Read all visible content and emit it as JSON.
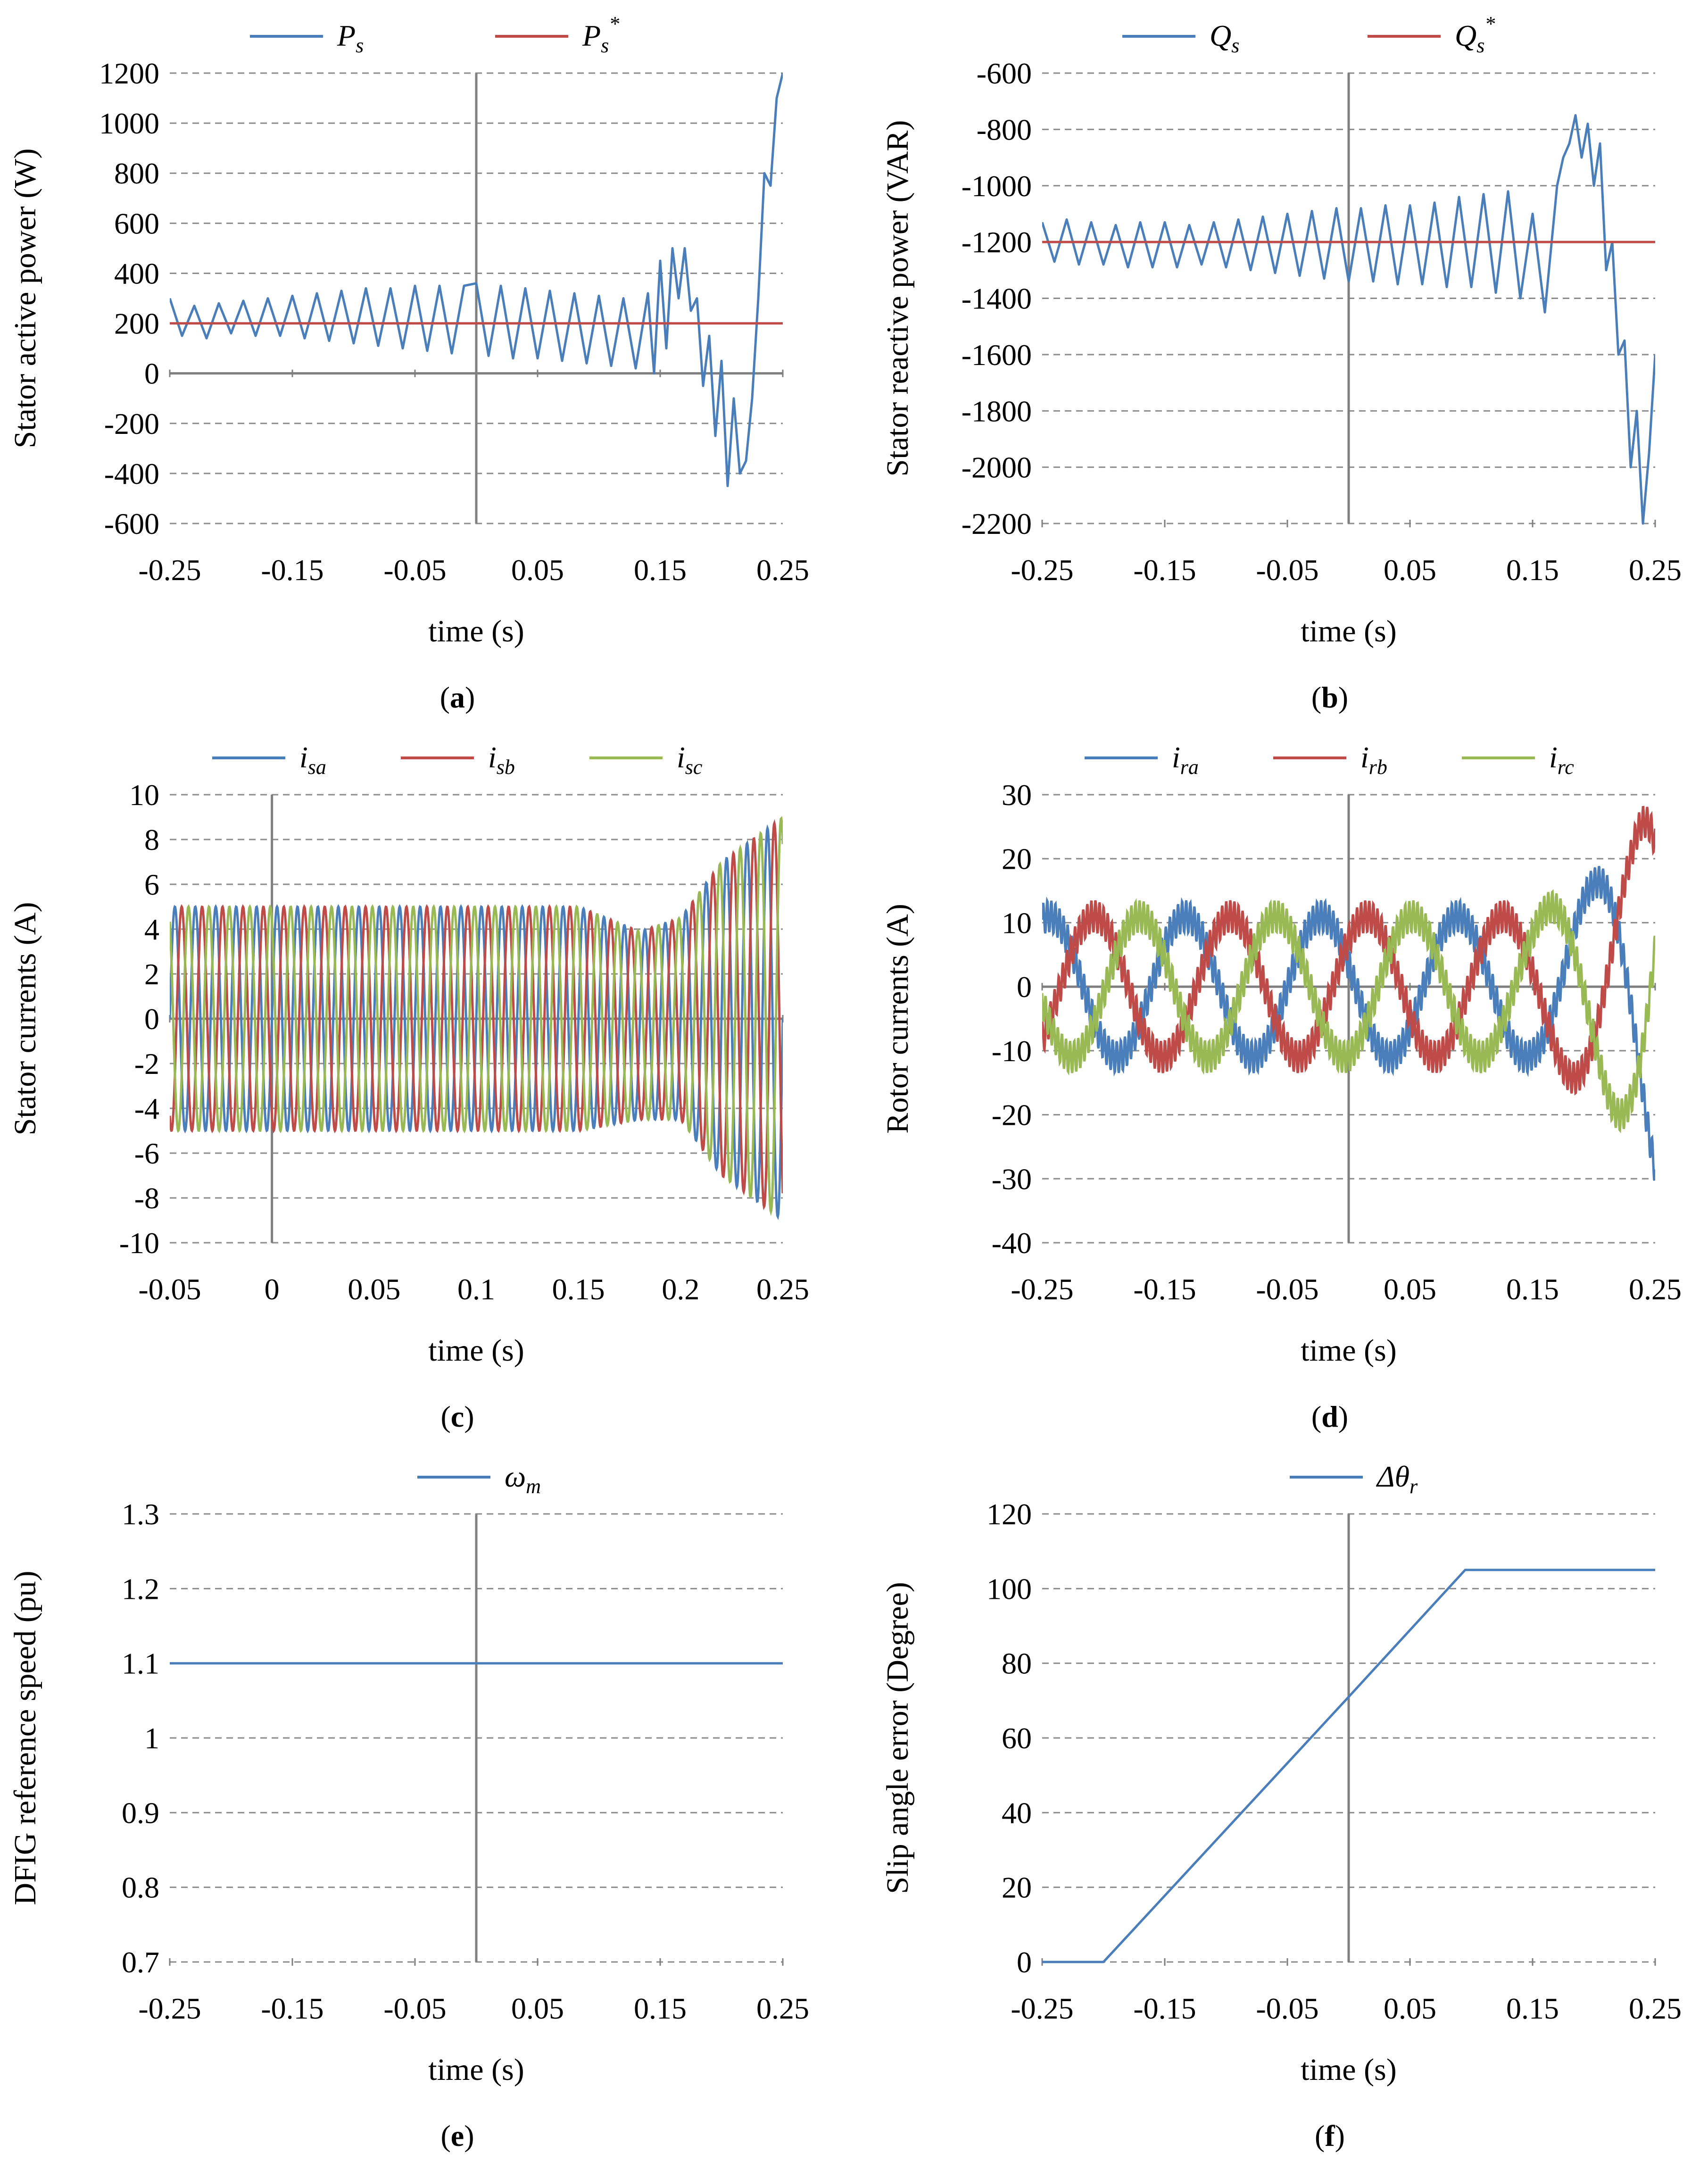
{
  "figure": {
    "panel_count": 6
  },
  "colors": {
    "blue": "#4a7ebb",
    "red": "#be4b48",
    "green": "#98b954",
    "axis": "#7f7f7f",
    "grid": "#8c8c8c"
  },
  "chart_data": [
    {
      "id": "a",
      "panel_label": "a",
      "type": "line",
      "title": "",
      "xlabel": "time (s)",
      "ylabel": "Stator active power (W)",
      "xlim": [
        -0.25,
        0.25
      ],
      "ylim": [
        -600,
        1200
      ],
      "xticks": [
        -0.25,
        -0.15,
        -0.05,
        0.05,
        0.15,
        0.25
      ],
      "xtick_labels": [
        "-0.25",
        "-0.15",
        "-0.05",
        "0.05",
        "0.15",
        "0.25"
      ],
      "yticks": [
        -600,
        -400,
        -200,
        0,
        200,
        400,
        600,
        800,
        1000,
        1200
      ],
      "ytick_labels": [
        "-600",
        "-400",
        "-200",
        "0",
        "200",
        "400",
        "600",
        "800",
        "1000",
        "1200"
      ],
      "grid": "horizontal dashed",
      "legend": "top-center",
      "vertical_axis_at": 0,
      "horizontal_axis_at": 0,
      "series": [
        {
          "name": "Ps",
          "legend_main": "P",
          "legend_sub": "s",
          "legend_sup": "",
          "color": "#4a7ebb",
          "x": [
            -0.25,
            -0.24,
            -0.23,
            -0.22,
            -0.21,
            -0.2,
            -0.19,
            -0.18,
            -0.17,
            -0.16,
            -0.15,
            -0.14,
            -0.13,
            -0.12,
            -0.11,
            -0.1,
            -0.09,
            -0.08,
            -0.07,
            -0.06,
            -0.05,
            -0.04,
            -0.03,
            -0.02,
            -0.01,
            0.0,
            0.01,
            0.02,
            0.03,
            0.04,
            0.05,
            0.06,
            0.07,
            0.08,
            0.09,
            0.1,
            0.11,
            0.12,
            0.13,
            0.14,
            0.145,
            0.15,
            0.155,
            0.16,
            0.165,
            0.17,
            0.175,
            0.18,
            0.185,
            0.19,
            0.195,
            0.2,
            0.205,
            0.21,
            0.215,
            0.22,
            0.225,
            0.23,
            0.235,
            0.24,
            0.245,
            0.25
          ],
          "values": [
            300,
            150,
            270,
            140,
            280,
            160,
            290,
            150,
            300,
            150,
            310,
            140,
            320,
            130,
            330,
            120,
            340,
            110,
            340,
            100,
            350,
            90,
            350,
            80,
            350,
            360,
            70,
            350,
            60,
            340,
            60,
            330,
            50,
            320,
            40,
            310,
            30,
            300,
            20,
            320,
            0,
            450,
            100,
            500,
            300,
            500,
            250,
            300,
            -50,
            150,
            -250,
            50,
            -450,
            -100,
            -400,
            -350,
            -100,
            300,
            800,
            750,
            1100,
            1200
          ]
        },
        {
          "name": "Ps*",
          "legend_main": "P",
          "legend_sub": "s",
          "legend_sup": "*",
          "color": "#be4b48",
          "x": [
            -0.25,
            0.25
          ],
          "values": [
            200,
            200
          ]
        }
      ]
    },
    {
      "id": "b",
      "panel_label": "b",
      "type": "line",
      "title": "",
      "xlabel": "time (s)",
      "ylabel": "Stator reactive power (VAR)",
      "xlim": [
        -0.25,
        0.25
      ],
      "ylim": [
        -2200,
        -600
      ],
      "xticks": [
        -0.25,
        -0.15,
        -0.05,
        0.05,
        0.15,
        0.25
      ],
      "xtick_labels": [
        "-0.25",
        "-0.15",
        "-0.05",
        "0.05",
        "0.15",
        "0.25"
      ],
      "yticks": [
        -2200,
        -2000,
        -1800,
        -1600,
        -1400,
        -1200,
        -1000,
        -800,
        -600
      ],
      "ytick_labels": [
        "-2200",
        "-2000",
        "-1800",
        "-1600",
        "-1400",
        "-1200",
        "-1000",
        "-800",
        "-600"
      ],
      "grid": "horizontal dashed",
      "legend": "top-center",
      "vertical_axis_at": 0,
      "horizontal_axis_at": null,
      "series": [
        {
          "name": "Qs",
          "legend_main": "Q",
          "legend_sub": "s",
          "legend_sup": "",
          "color": "#4a7ebb",
          "x": [
            -0.25,
            -0.24,
            -0.23,
            -0.22,
            -0.21,
            -0.2,
            -0.19,
            -0.18,
            -0.17,
            -0.16,
            -0.15,
            -0.14,
            -0.13,
            -0.12,
            -0.11,
            -0.1,
            -0.09,
            -0.08,
            -0.07,
            -0.06,
            -0.05,
            -0.04,
            -0.03,
            -0.02,
            -0.01,
            0.0,
            0.01,
            0.02,
            0.03,
            0.04,
            0.05,
            0.06,
            0.07,
            0.08,
            0.09,
            0.1,
            0.11,
            0.12,
            0.13,
            0.14,
            0.15,
            0.16,
            0.17,
            0.175,
            0.18,
            0.185,
            0.19,
            0.195,
            0.2,
            0.205,
            0.21,
            0.215,
            0.22,
            0.225,
            0.23,
            0.235,
            0.24,
            0.245,
            0.25
          ],
          "values": [
            -1130,
            -1270,
            -1120,
            -1280,
            -1130,
            -1280,
            -1140,
            -1290,
            -1130,
            -1290,
            -1130,
            -1290,
            -1140,
            -1280,
            -1130,
            -1290,
            -1120,
            -1300,
            -1110,
            -1310,
            -1100,
            -1320,
            -1090,
            -1330,
            -1080,
            -1340,
            -1080,
            -1340,
            -1070,
            -1350,
            -1070,
            -1350,
            -1060,
            -1360,
            -1040,
            -1360,
            -1030,
            -1380,
            -1020,
            -1400,
            -1100,
            -1450,
            -1000,
            -900,
            -850,
            -750,
            -900,
            -780,
            -1000,
            -850,
            -1300,
            -1200,
            -1600,
            -1550,
            -2000,
            -1800,
            -2200,
            -1950,
            -1600
          ]
        },
        {
          "name": "Qs*",
          "legend_main": "Q",
          "legend_sub": "s",
          "legend_sup": "*",
          "color": "#be4b48",
          "x": [
            -0.25,
            0.25
          ],
          "values": [
            -1200,
            -1200
          ]
        }
      ]
    },
    {
      "id": "c",
      "panel_label": "c",
      "type": "line",
      "title": "",
      "xlabel": "time (s)",
      "ylabel": "Stator currents (A)",
      "xlim": [
        -0.05,
        0.25
      ],
      "ylim": [
        -10,
        10
      ],
      "xticks": [
        -0.05,
        0,
        0.05,
        0.1,
        0.15,
        0.2,
        0.25
      ],
      "xtick_labels": [
        "-0.05",
        "0",
        "0.05",
        "0.1",
        "0.15",
        "0.2",
        "0.25"
      ],
      "yticks": [
        -10,
        -8,
        -6,
        -4,
        -2,
        0,
        2,
        4,
        6,
        8,
        10
      ],
      "ytick_labels": [
        "-10",
        "-8",
        "-6",
        "-4",
        "-2",
        "0",
        "2",
        "4",
        "6",
        "8",
        "10"
      ],
      "grid": "horizontal dashed",
      "legend": "top-center",
      "vertical_axis_at": 0,
      "horizontal_axis_at": 0,
      "series": [
        {
          "name": "isa",
          "legend_main": "i",
          "legend_sub": "sa",
          "legend_sup": "",
          "color": "#4a7ebb"
        },
        {
          "name": "isb",
          "legend_main": "i",
          "legend_sub": "sb",
          "legend_sup": "",
          "color": "#be4b48"
        },
        {
          "name": "isc",
          "legend_main": "i",
          "legend_sub": "sc",
          "legend_sup": "",
          "color": "#98b954"
        }
      ],
      "waveform": {
        "kind": "three-phase sine",
        "frequency_hz": 100,
        "amplitude": 5,
        "envelope_t": [
          -0.05,
          0.15,
          0.18,
          0.2,
          0.22,
          0.25
        ],
        "envelope_amp": [
          5,
          5,
          4.2,
          4.5,
          7,
          9
        ],
        "envelope_offset": [
          0,
          0,
          -0.3,
          0,
          0,
          0
        ]
      }
    },
    {
      "id": "d",
      "panel_label": "d",
      "type": "line",
      "title": "",
      "xlabel": "time (s)",
      "ylabel": "Rotor currents (A)",
      "xlim": [
        -0.25,
        0.25
      ],
      "ylim": [
        -40,
        30
      ],
      "xticks": [
        -0.25,
        -0.15,
        -0.05,
        0.05,
        0.15,
        0.25
      ],
      "xtick_labels": [
        "-0.25",
        "-0.15",
        "-0.05",
        "0.05",
        "0.15",
        "0.25"
      ],
      "yticks": [
        -40,
        -30,
        -20,
        -10,
        0,
        10,
        20,
        30
      ],
      "ytick_labels": [
        "-40",
        "-30",
        "-20",
        "-10",
        "0",
        "10",
        "20",
        "30"
      ],
      "grid": "horizontal dashed",
      "legend": "top-center",
      "vertical_axis_at": 0,
      "horizontal_axis_at": 0,
      "series": [
        {
          "name": "ira",
          "legend_main": "i",
          "legend_sub": "ra",
          "legend_sup": "",
          "color": "#4a7ebb"
        },
        {
          "name": "irb",
          "legend_main": "i",
          "legend_sub": "rb",
          "legend_sup": "",
          "color": "#be4b48"
        },
        {
          "name": "irc",
          "legend_main": "i",
          "legend_sub": "rc",
          "legend_sup": "",
          "color": "#98b954"
        }
      ],
      "waveform": {
        "kind": "three-phase sine with ripple",
        "frequency_hz": 9,
        "amplitude": 11,
        "ripple": 2.5,
        "envelope_t": [
          -0.25,
          0.15,
          0.2,
          0.23,
          0.25
        ],
        "envelope_amp": [
          11,
          11,
          16,
          22,
          30
        ]
      }
    },
    {
      "id": "e",
      "panel_label": "e",
      "type": "line",
      "title": "",
      "xlabel": "time (s)",
      "ylabel": "DFIG reference speed (pu)",
      "xlim": [
        -0.25,
        0.25
      ],
      "ylim": [
        0.7,
        1.3
      ],
      "xticks": [
        -0.25,
        -0.15,
        -0.05,
        0.05,
        0.15,
        0.25
      ],
      "xtick_labels": [
        "-0.25",
        "-0.15",
        "-0.05",
        "0.05",
        "0.15",
        "0.25"
      ],
      "yticks": [
        0.7,
        0.8,
        0.9,
        1.0,
        1.1,
        1.2,
        1.3
      ],
      "ytick_labels": [
        "0.7",
        "0.8",
        "0.9",
        "1",
        "1.1",
        "1.2",
        "1.3"
      ],
      "grid": "horizontal dashed",
      "legend": "top-center",
      "vertical_axis_at": 0,
      "horizontal_axis_at": null,
      "series": [
        {
          "name": "ωm",
          "legend_main": "ω",
          "legend_sub": "m",
          "legend_sup": "",
          "color": "#4a7ebb",
          "x": [
            -0.25,
            0.25
          ],
          "values": [
            1.1,
            1.1
          ]
        }
      ]
    },
    {
      "id": "f",
      "panel_label": "f",
      "type": "line",
      "title": "",
      "xlabel": "time (s)",
      "ylabel": "Slip angle error (Degree)",
      "xlim": [
        -0.25,
        0.25
      ],
      "ylim": [
        0,
        120
      ],
      "xticks": [
        -0.25,
        -0.15,
        -0.05,
        0.05,
        0.15,
        0.25
      ],
      "xtick_labels": [
        "-0.25",
        "-0.15",
        "-0.05",
        "0.05",
        "0.15",
        "0.25"
      ],
      "yticks": [
        0,
        20,
        40,
        60,
        80,
        100,
        120
      ],
      "ytick_labels": [
        "0",
        "20",
        "40",
        "60",
        "80",
        "100",
        "120"
      ],
      "grid": "horizontal dashed",
      "legend": "top-center",
      "vertical_axis_at": 0,
      "horizontal_axis_at": null,
      "series": [
        {
          "name": "Δθr",
          "legend_main": "Δθ",
          "legend_sub": "r",
          "legend_sup": "",
          "color": "#4a7ebb",
          "x": [
            -0.25,
            -0.2,
            0.0,
            0.095,
            0.25
          ],
          "values": [
            0,
            0,
            71,
            105,
            105
          ]
        }
      ]
    }
  ]
}
